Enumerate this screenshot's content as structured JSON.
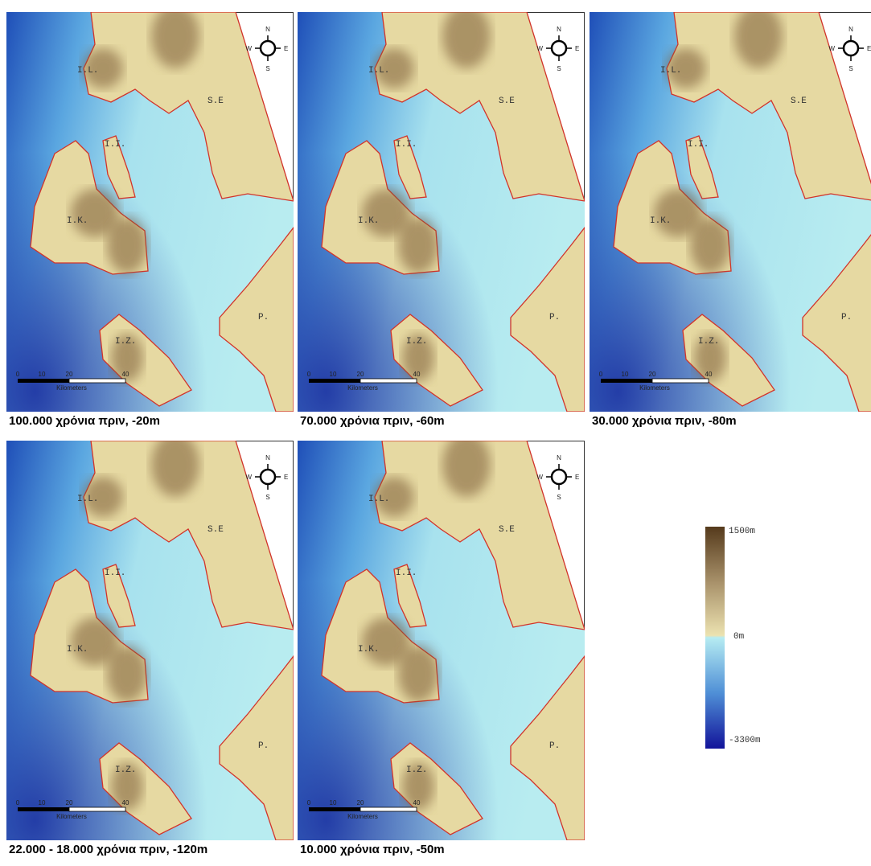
{
  "panels": [
    {
      "caption": "100.000 χρόνια πριν, -20m",
      "places": [
        "I.L.",
        "S.E",
        "I.I.",
        "I.K.",
        "I.Z.",
        "P."
      ],
      "scale": {
        "ticks": [
          "0",
          "10",
          "20",
          "40"
        ],
        "unit": "Kilometers"
      },
      "compass": [
        "N",
        "E",
        "S",
        "W"
      ]
    },
    {
      "caption": "70.000 χρόνια πριν, -60m",
      "places": [
        "I.L.",
        "S.E",
        "I.I.",
        "I.K.",
        "I.Z.",
        "P."
      ],
      "scale": {
        "ticks": [
          "0",
          "10",
          "20",
          "40"
        ],
        "unit": "Kilometers"
      },
      "compass": [
        "N",
        "E",
        "S",
        "W"
      ]
    },
    {
      "caption": "30.000 χρόνια πριν, -80m",
      "places": [
        "I.L.",
        "S.E",
        "I.I.",
        "I.K.",
        "I.Z.",
        "P."
      ],
      "scale": {
        "ticks": [
          "0",
          "10",
          "20",
          "40"
        ],
        "unit": "Kilometers"
      },
      "compass": [
        "N",
        "E",
        "S",
        "W"
      ]
    },
    {
      "caption": "22.000 - 18.000 χρόνια πριν, -120m",
      "places": [
        "I.L.",
        "S.E",
        "I.I.",
        "I.K.",
        "I.Z.",
        "P."
      ],
      "scale": {
        "ticks": [
          "0",
          "10",
          "20",
          "40"
        ],
        "unit": "Kilometers"
      },
      "compass": [
        "N",
        "E",
        "S",
        "W"
      ]
    },
    {
      "caption": "10.000 χρόνια πριν, -50m",
      "places": [
        "I.L.",
        "S.E",
        "I.I.",
        "I.K.",
        "I.Z.",
        "P."
      ],
      "scale": {
        "ticks": [
          "0",
          "10",
          "20",
          "40"
        ],
        "unit": "Kilometers"
      },
      "compass": [
        "N",
        "E",
        "S",
        "W"
      ]
    }
  ],
  "legend": {
    "labels": [
      "1500m",
      "0m",
      "-3300m"
    ]
  }
}
